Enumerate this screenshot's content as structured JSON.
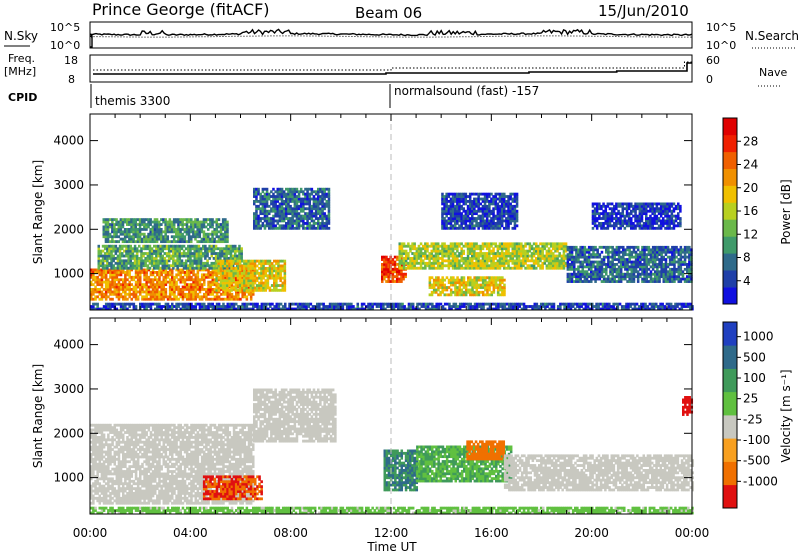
{
  "header": {
    "station": "Prince George (fitACF)",
    "beam": "Beam 06",
    "date": "15/Jun/2010"
  },
  "strip_labels": {
    "nsky": "N.Sky",
    "nsky_ticks": [
      "10^5",
      "10^0"
    ],
    "nsearch": "N.Search",
    "nsearch_ticks": [
      "10^5",
      "10^0"
    ],
    "freq": "Freq.",
    "freq_unit": "[MHz]",
    "freq_ticks": [
      "18",
      "8"
    ],
    "nave": "Nave",
    "nave_ticks": [
      "60",
      "0"
    ],
    "cpid": "CPID",
    "cpid_left": "themis 3300",
    "cpid_right": "normalsound (fast) -157"
  },
  "x_axis": {
    "label": "Time UT",
    "ticks": [
      "00:00",
      "04:00",
      "08:00",
      "12:00",
      "16:00",
      "20:00",
      "00:00"
    ]
  },
  "chart_data": [
    {
      "type": "heatmap",
      "quantity": "Power",
      "x": "Time UT",
      "xlim": [
        0,
        24
      ],
      "xticks": [
        "00:00",
        "04:00",
        "08:00",
        "12:00",
        "16:00",
        "20:00",
        "00:00"
      ],
      "ylabel": "Slant Range [km]",
      "ylim": [
        180,
        4600
      ],
      "yticks": [
        "1000",
        "2000",
        "3000",
        "4000"
      ],
      "colorbar": {
        "label": "Power [dB]",
        "ticks": [
          "4",
          "8",
          "12",
          "16",
          "20",
          "24",
          "28"
        ],
        "colors": [
          "#1010e0",
          "#1f3fa8",
          "#2f6a8a",
          "#3f9a6a",
          "#6ab84a",
          "#b8d020",
          "#f0c000",
          "#f09000",
          "#f06000",
          "#f02000",
          "#e00000"
        ]
      },
      "regions": [
        {
          "t0": 0.0,
          "t1": 6.5,
          "r0": 400,
          "r1": 1100,
          "level": 22
        },
        {
          "t0": 0.3,
          "t1": 6.0,
          "r0": 1100,
          "r1": 1600,
          "level": 12
        },
        {
          "t0": 0.5,
          "t1": 5.5,
          "r0": 1700,
          "r1": 2200,
          "level": 11
        },
        {
          "t0": 5.0,
          "t1": 7.8,
          "r0": 600,
          "r1": 1300,
          "level": 18
        },
        {
          "t0": 6.5,
          "t1": 9.5,
          "r0": 2000,
          "r1": 2900,
          "level": 8
        },
        {
          "t0": 11.6,
          "t1": 12.6,
          "r0": 800,
          "r1": 1400,
          "level": 26
        },
        {
          "t0": 12.3,
          "t1": 19.0,
          "r0": 1100,
          "r1": 1700,
          "level": 16
        },
        {
          "t0": 13.5,
          "t1": 16.5,
          "r0": 500,
          "r1": 900,
          "level": 18
        },
        {
          "t0": 19.0,
          "t1": 24.0,
          "r0": 800,
          "r1": 1600,
          "level": 8
        },
        {
          "t0": 14.0,
          "t1": 17.0,
          "r0": 2000,
          "r1": 2800,
          "level": 6
        },
        {
          "t0": 20.0,
          "t1": 23.5,
          "r0": 2000,
          "r1": 2600,
          "level": 5
        },
        {
          "t0": 0.0,
          "t1": 24.0,
          "r0": 180,
          "r1": 320,
          "level": 6
        }
      ]
    },
    {
      "type": "heatmap",
      "quantity": "Velocity",
      "x": "Time UT",
      "xlim": [
        0,
        24
      ],
      "xticks": [
        "00:00",
        "04:00",
        "08:00",
        "12:00",
        "16:00",
        "20:00",
        "00:00"
      ],
      "ylabel": "Slant Range [km]",
      "ylim": [
        180,
        4600
      ],
      "yticks": [
        "1000",
        "2000",
        "3000",
        "4000"
      ],
      "colorbar": {
        "label": "Velocity [m s⁻¹]",
        "ticks": [
          "1000",
          "500",
          "100",
          "25",
          "-25",
          "-100",
          "-500",
          "-1000"
        ],
        "colors": [
          "#2040c0",
          "#2f6a8a",
          "#3f9a5a",
          "#60c040",
          "#c8c8c0",
          "#f8a020",
          "#f07000",
          "#e01010"
        ]
      },
      "regions": [
        {
          "t0": 0.0,
          "t1": 6.5,
          "r0": 400,
          "r1": 2200,
          "level": 0
        },
        {
          "t0": 4.5,
          "t1": 6.8,
          "r0": 500,
          "r1": 1000,
          "level": -300
        },
        {
          "t0": 6.5,
          "t1": 9.8,
          "r0": 1800,
          "r1": 3000,
          "level": 0
        },
        {
          "t0": 11.7,
          "t1": 13.0,
          "r0": 700,
          "r1": 1600,
          "level": 300
        },
        {
          "t0": 13.0,
          "t1": 16.8,
          "r0": 900,
          "r1": 1700,
          "level": 60
        },
        {
          "t0": 15.0,
          "t1": 16.5,
          "r0": 1400,
          "r1": 1800,
          "level": -150
        },
        {
          "t0": 16.5,
          "t1": 24.0,
          "r0": 700,
          "r1": 1500,
          "level": 0
        },
        {
          "t0": 0.0,
          "t1": 24.0,
          "r0": 180,
          "r1": 320,
          "level": 40
        },
        {
          "t0": 23.6,
          "t1": 24.0,
          "r0": 2400,
          "r1": 2800,
          "level": -500
        }
      ]
    }
  ]
}
